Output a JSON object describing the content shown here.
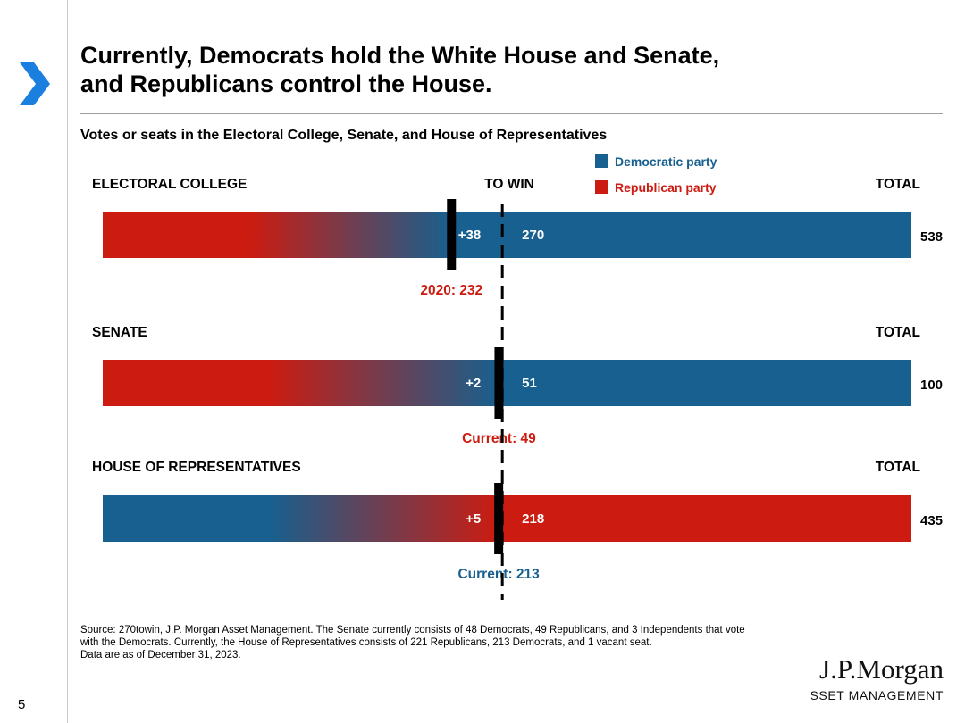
{
  "page": {
    "title_line1": "Currently, Democrats hold the White House and Senate,",
    "title_line2": "and Republicans control the House.",
    "subtitle": "Votes or seats in the Electoral College, Senate, and House of Representatives",
    "source_line1": "Source: 270towin, J.P. Morgan Asset Management. The Senate currently consists of 48 Democrats, 49 Republicans, and 3 Independents that vote",
    "source_line2": "with the Democrats. Currently, the House of Representatives consists of 221 Republicans, 213 Democrats, and 1 vacant seat.",
    "source_line3": "Data are as of December 31, 2023.",
    "page_number": "5",
    "logo_line1": "J.P.Morgan",
    "logo_line2": "ASSET MANAGEMENT"
  },
  "colors": {
    "democratic": "#17608f",
    "republican": "#cc1b10",
    "accent": "#1b7fe0"
  },
  "chart_data": {
    "type": "bar",
    "legend": [
      {
        "name": "Democratic party",
        "color": "#17608f"
      },
      {
        "name": "Republican party",
        "color": "#cc1b10"
      }
    ],
    "to_win_label": "TO WIN",
    "total_label": "TOTAL",
    "rows": [
      {
        "name": "ELECTORAL COLLEGE",
        "total": 538,
        "total_text": "538",
        "to_win": 270,
        "to_win_text": "270",
        "current": 232,
        "current_label": "2020: 232",
        "margin_text": "+38",
        "left_party": "republican",
        "right_party": "democratic",
        "show_to_win_header": true
      },
      {
        "name": "SENATE",
        "total": 100,
        "total_text": "100",
        "to_win": 51,
        "to_win_text": "51",
        "current": 49,
        "current_label": "Current: 49",
        "margin_text": "+2",
        "left_party": "republican",
        "right_party": "democratic",
        "show_to_win_header": false
      },
      {
        "name": "HOUSE OF REPRESENTATIVES",
        "total": 435,
        "total_text": "435",
        "to_win": 218,
        "to_win_text": "218",
        "current": 213,
        "current_label": "Current: 213",
        "margin_text": "+5",
        "left_party": "democratic",
        "right_party": "republican",
        "show_to_win_header": false
      }
    ]
  }
}
